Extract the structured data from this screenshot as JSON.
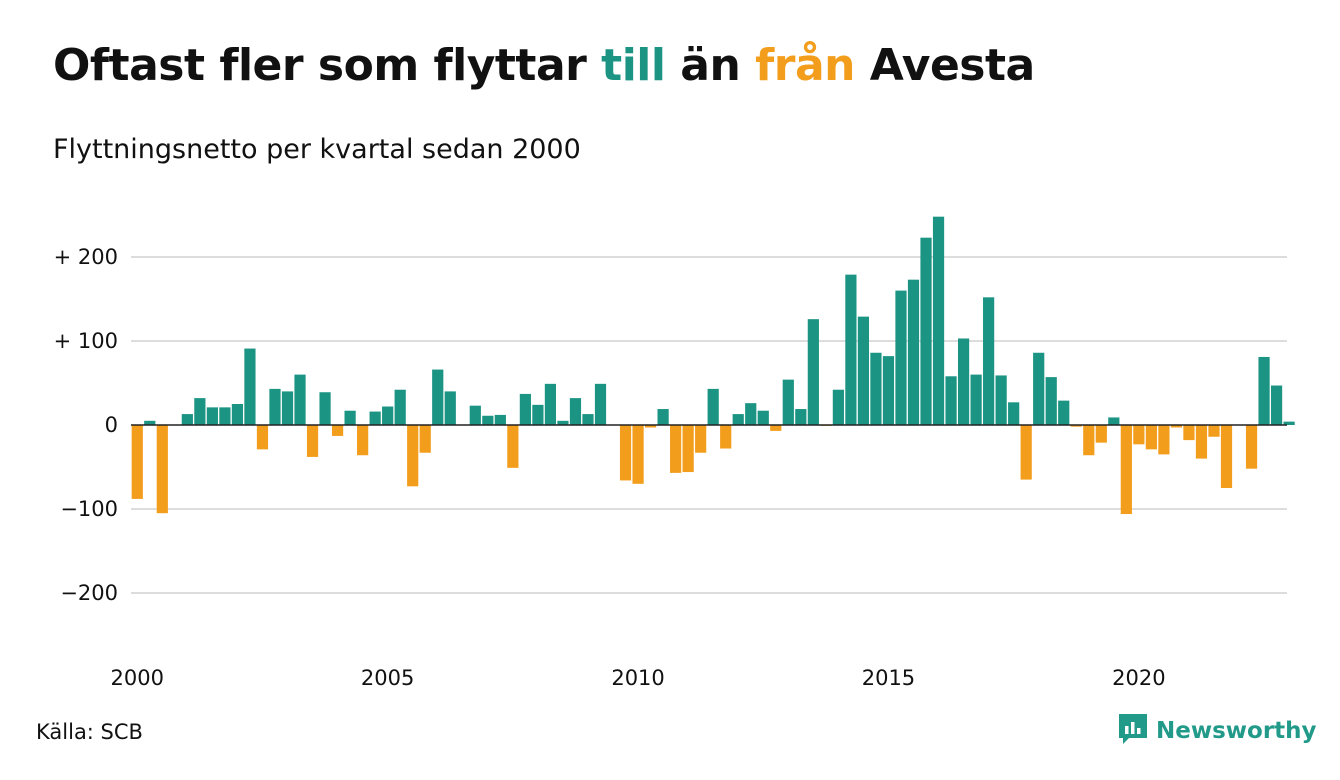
{
  "title": {
    "part1": "Oftast fler som flyttar ",
    "part2": "till",
    "part3": " än ",
    "part4": "från",
    "part5": " Avesta"
  },
  "subtitle": "Flyttningsnetto per kvartal sedan 2000",
  "source": "Källa: SCB",
  "brand": {
    "name": "Newsworthy",
    "icon": "newsworthy-logo-icon",
    "color": "#229a8a"
  },
  "colors": {
    "positive": "#1b9484",
    "negative": "#f39d1c",
    "grid": "#dddddd",
    "text": "#111111"
  },
  "chart_data": {
    "type": "bar",
    "title": "Oftast fler som flyttar till än från Avesta",
    "subtitle": "Flyttningsnetto per kvartal sedan 2000",
    "xlabel": "",
    "ylabel": "",
    "ylim": [
      -250,
      250
    ],
    "x_start": "2000",
    "periods_per_year": 4,
    "x_ticks": [
      2000,
      2005,
      2010,
      2015,
      2020
    ],
    "x_tick_labels": [
      "2000",
      "2005",
      "2010",
      "2015",
      "2020"
    ],
    "y_ticks": [
      -200,
      -100,
      0,
      100,
      200
    ],
    "y_tick_labels": [
      "−200",
      "−100",
      "0",
      "+ 100",
      "+ 200"
    ],
    "grid": true,
    "legend": "none",
    "values": [
      -88,
      5,
      -105,
      0,
      13,
      32,
      21,
      21,
      25,
      91,
      -29,
      43,
      40,
      60,
      -38,
      39,
      -13,
      17,
      -36,
      16,
      22,
      42,
      -73,
      -33,
      66,
      40,
      0,
      23,
      11,
      12,
      -51,
      37,
      24,
      49,
      5,
      32,
      13,
      49,
      0,
      -66,
      -70,
      -3,
      19,
      -57,
      -56,
      -33,
      43,
      -28,
      13,
      26,
      17,
      -7,
      54,
      19,
      126,
      -1,
      42,
      179,
      129,
      86,
      82,
      160,
      173,
      223,
      248,
      58,
      103,
      60,
      152,
      59,
      27,
      -65,
      86,
      57,
      29,
      -2,
      -36,
      -21,
      9,
      -106,
      -23,
      -29,
      -35,
      -3,
      -18,
      -40,
      -14,
      -75,
      0,
      -52,
      81,
      47,
      4
    ]
  }
}
